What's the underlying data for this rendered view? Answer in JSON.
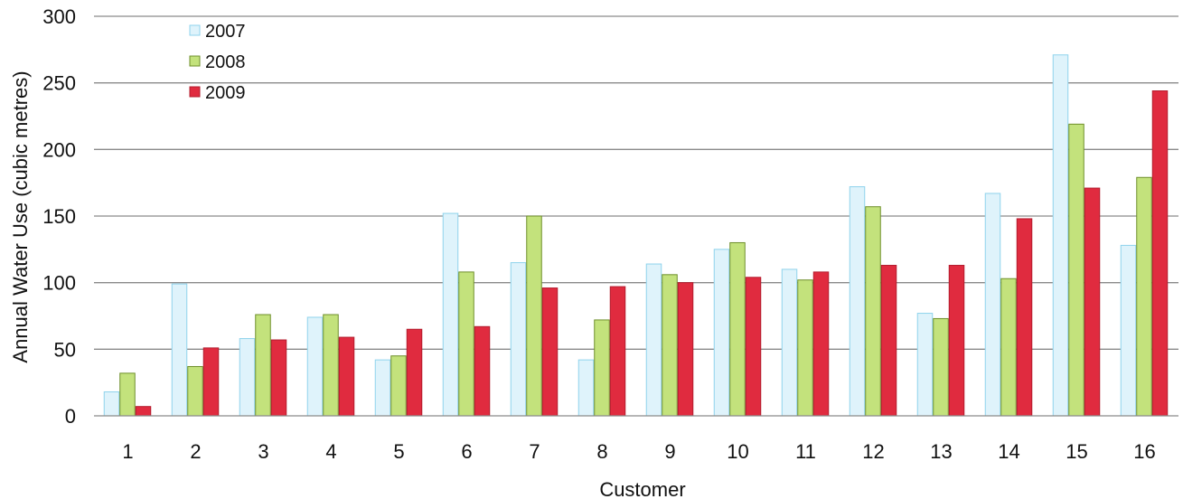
{
  "chart_data": {
    "type": "bar",
    "title": "",
    "xlabel": "Customer",
    "ylabel": "Annual Water Use (cubic metres)",
    "ylim": [
      0,
      300
    ],
    "yticks": [
      "0",
      "50",
      "100",
      "150",
      "200",
      "250",
      "300"
    ],
    "grid": true,
    "legend_position": "top-left",
    "categories": [
      "1",
      "2",
      "3",
      "4",
      "5",
      "6",
      "7",
      "8",
      "9",
      "10",
      "11",
      "12",
      "13",
      "14",
      "15",
      "16"
    ],
    "series": [
      {
        "name": "2007",
        "color": "#dff3fb",
        "edge": "#8fd3ec",
        "values": [
          18,
          99,
          58,
          74,
          42,
          152,
          115,
          42,
          114,
          125,
          110,
          172,
          77,
          167,
          271,
          128
        ]
      },
      {
        "name": "2008",
        "color": "#c3e27c",
        "edge": "#6e8f2a",
        "values": [
          32,
          37,
          76,
          76,
          45,
          108,
          150,
          72,
          106,
          130,
          102,
          157,
          73,
          103,
          219,
          179
        ]
      },
      {
        "name": "2009",
        "color": "#e02b3f",
        "edge": "#b31c2e",
        "values": [
          7,
          51,
          57,
          59,
          65,
          67,
          96,
          97,
          100,
          104,
          108,
          113,
          113,
          148,
          171,
          244
        ]
      }
    ]
  }
}
